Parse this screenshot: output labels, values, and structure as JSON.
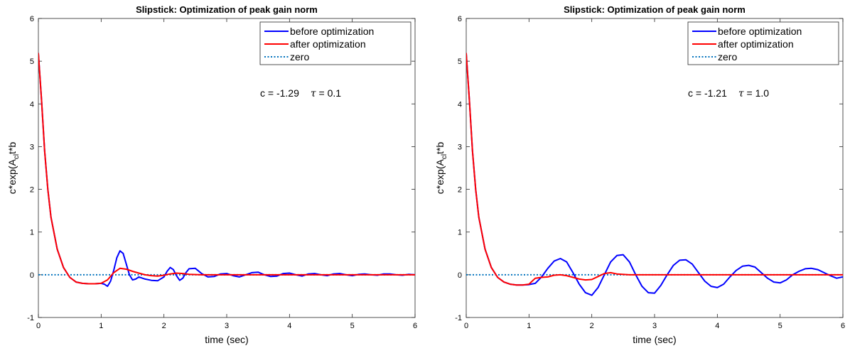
{
  "chart_data": [
    {
      "type": "line",
      "title": "Slipstick: Optimization of peak gain norm",
      "xlabel": "time (sec)",
      "ylabel": "c*exp(A_cl t*b",
      "ylabel_parts": {
        "pre": "c*exp(A",
        "sub": "cl",
        "post": "t*b"
      },
      "xlim": [
        0,
        6
      ],
      "ylim": [
        -1,
        6
      ],
      "xticks": [
        "0",
        "1",
        "2",
        "3",
        "4",
        "5",
        "6"
      ],
      "yticks": [
        "-1",
        "0",
        "1",
        "2",
        "3",
        "4",
        "5",
        "6"
      ],
      "grid": false,
      "legend_position": "top-right",
      "annotation": {
        "c_text": "c = -1.29",
        "tau_symbol": "τ",
        "tau_text": " = 0.1"
      },
      "series": [
        {
          "name": "before optimization",
          "color": "#0000ff",
          "style": "solid",
          "x": [
            0,
            0.05,
            0.1,
            0.15,
            0.2,
            0.3,
            0.4,
            0.5,
            0.6,
            0.7,
            0.8,
            0.9,
            1.0,
            1.05,
            1.1,
            1.15,
            1.2,
            1.25,
            1.3,
            1.35,
            1.4,
            1.45,
            1.5,
            1.55,
            1.6,
            1.7,
            1.8,
            1.9,
            2.0,
            2.05,
            2.1,
            2.15,
            2.2,
            2.25,
            2.3,
            2.35,
            2.4,
            2.5,
            2.6,
            2.7,
            2.8,
            2.9,
            3.0,
            3.1,
            3.2,
            3.3,
            3.4,
            3.5,
            3.6,
            3.7,
            3.8,
            3.9,
            4.0,
            4.1,
            4.2,
            4.3,
            4.4,
            4.5,
            4.6,
            4.7,
            4.8,
            4.9,
            5.0,
            5.1,
            5.2,
            5.3,
            5.4,
            5.5,
            5.6,
            5.7,
            5.8,
            5.9,
            6.0
          ],
          "y": [
            5.18,
            4.1,
            2.9,
            2.0,
            1.35,
            0.6,
            0.17,
            -0.06,
            -0.17,
            -0.2,
            -0.21,
            -0.21,
            -0.2,
            -0.22,
            -0.27,
            -0.15,
            0.1,
            0.4,
            0.56,
            0.5,
            0.25,
            0.0,
            -0.12,
            -0.1,
            -0.05,
            -0.1,
            -0.13,
            -0.14,
            -0.05,
            0.08,
            0.17,
            0.12,
            -0.02,
            -0.13,
            -0.08,
            0.05,
            0.14,
            0.15,
            0.03,
            -0.05,
            -0.04,
            0.02,
            0.03,
            -0.02,
            -0.05,
            0.0,
            0.05,
            0.06,
            0.0,
            -0.04,
            -0.03,
            0.03,
            0.04,
            0.0,
            -0.03,
            0.02,
            0.03,
            0.0,
            -0.02,
            0.02,
            0.03,
            0.0,
            -0.02,
            0.01,
            0.02,
            0.0,
            -0.01,
            0.02,
            0.02,
            0.0,
            -0.01,
            0.01,
            0.0
          ]
        },
        {
          "name": "after optimization",
          "color": "#ff0000",
          "style": "solid",
          "x": [
            0,
            0.05,
            0.1,
            0.15,
            0.2,
            0.3,
            0.4,
            0.5,
            0.6,
            0.7,
            0.8,
            0.9,
            1.0,
            1.1,
            1.2,
            1.3,
            1.4,
            1.5,
            1.6,
            1.7,
            1.8,
            1.9,
            2.0,
            2.1,
            2.2,
            2.3,
            2.4,
            2.6,
            2.8,
            3.0,
            3.5,
            4.0,
            5.0,
            6.0
          ],
          "y": [
            5.18,
            4.1,
            2.9,
            2.0,
            1.35,
            0.6,
            0.17,
            -0.06,
            -0.17,
            -0.2,
            -0.21,
            -0.21,
            -0.2,
            -0.12,
            0.05,
            0.15,
            0.13,
            0.08,
            0.04,
            0.0,
            -0.02,
            -0.03,
            -0.01,
            0.02,
            0.04,
            0.03,
            0.01,
            0.0,
            0.0,
            0.0,
            0.0,
            0.0,
            0.0,
            0.0
          ]
        },
        {
          "name": "zero",
          "color": "#0072bd",
          "style": "dotted",
          "x": [
            0,
            6
          ],
          "y": [
            0,
            0
          ]
        }
      ]
    },
    {
      "type": "line",
      "title": "Slipstick: Optimization of peak gain norm",
      "xlabel": "time (sec)",
      "ylabel": "c*exp(A_cl t*b",
      "ylabel_parts": {
        "pre": "c*exp(A",
        "sub": "cl",
        "post": "t*b"
      },
      "xlim": [
        0,
        6
      ],
      "ylim": [
        -1,
        6
      ],
      "xticks": [
        "0",
        "1",
        "2",
        "3",
        "4",
        "5",
        "6"
      ],
      "yticks": [
        "-1",
        "0",
        "1",
        "2",
        "3",
        "4",
        "5",
        "6"
      ],
      "grid": false,
      "legend_position": "top-right",
      "annotation": {
        "c_text": "c = -1.21",
        "tau_symbol": "τ",
        "tau_text": " = 1.0"
      },
      "series": [
        {
          "name": "before optimization",
          "color": "#0000ff",
          "style": "solid",
          "x": [
            0,
            0.05,
            0.1,
            0.15,
            0.2,
            0.3,
            0.4,
            0.5,
            0.6,
            0.7,
            0.8,
            0.9,
            1.0,
            1.1,
            1.2,
            1.3,
            1.4,
            1.5,
            1.6,
            1.7,
            1.8,
            1.9,
            2.0,
            2.1,
            2.2,
            2.3,
            2.4,
            2.5,
            2.6,
            2.7,
            2.8,
            2.9,
            3.0,
            3.1,
            3.2,
            3.3,
            3.4,
            3.5,
            3.6,
            3.7,
            3.8,
            3.9,
            4.0,
            4.1,
            4.2,
            4.3,
            4.4,
            4.5,
            4.6,
            4.7,
            4.8,
            4.9,
            5.0,
            5.1,
            5.2,
            5.3,
            5.4,
            5.5,
            5.6,
            5.7,
            5.8,
            5.9,
            6.0
          ],
          "y": [
            5.18,
            4.1,
            2.9,
            2.0,
            1.35,
            0.6,
            0.17,
            -0.06,
            -0.17,
            -0.22,
            -0.24,
            -0.24,
            -0.23,
            -0.2,
            -0.05,
            0.15,
            0.32,
            0.38,
            0.3,
            0.05,
            -0.22,
            -0.42,
            -0.48,
            -0.3,
            0.0,
            0.3,
            0.45,
            0.47,
            0.3,
            0.0,
            -0.27,
            -0.42,
            -0.43,
            -0.25,
            0.0,
            0.22,
            0.34,
            0.35,
            0.25,
            0.05,
            -0.15,
            -0.27,
            -0.3,
            -0.22,
            -0.05,
            0.1,
            0.2,
            0.22,
            0.18,
            0.05,
            -0.08,
            -0.17,
            -0.19,
            -0.12,
            0.0,
            0.08,
            0.14,
            0.15,
            0.12,
            0.05,
            -0.02,
            -0.08,
            -0.05
          ]
        },
        {
          "name": "after optimization",
          "color": "#ff0000",
          "style": "solid",
          "x": [
            0,
            0.05,
            0.1,
            0.15,
            0.2,
            0.3,
            0.4,
            0.5,
            0.6,
            0.7,
            0.8,
            0.9,
            1.0,
            1.1,
            1.2,
            1.3,
            1.4,
            1.5,
            1.6,
            1.7,
            1.8,
            1.9,
            2.0,
            2.1,
            2.2,
            2.3,
            2.4,
            2.6,
            2.8,
            3.0,
            3.5,
            4.0,
            5.0,
            6.0
          ],
          "y": [
            5.18,
            4.1,
            2.9,
            2.0,
            1.35,
            0.6,
            0.17,
            -0.06,
            -0.17,
            -0.22,
            -0.24,
            -0.24,
            -0.22,
            -0.08,
            -0.06,
            -0.05,
            -0.01,
            0.0,
            -0.02,
            -0.06,
            -0.1,
            -0.12,
            -0.11,
            -0.04,
            0.03,
            0.05,
            0.02,
            0.0,
            0.0,
            0.0,
            0.0,
            0.0,
            0.0,
            0.0
          ]
        },
        {
          "name": "zero",
          "color": "#0072bd",
          "style": "dotted",
          "x": [
            0,
            6
          ],
          "y": [
            0,
            0
          ]
        }
      ]
    }
  ]
}
